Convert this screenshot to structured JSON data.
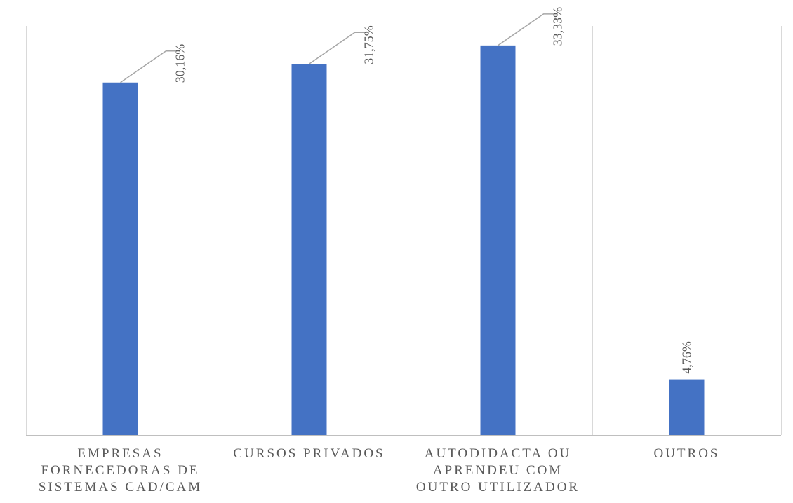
{
  "chart_data": {
    "type": "bar",
    "categories": [
      [
        "EMPRESAS",
        "FORNECEDORAS DE",
        "SISTEMAS CAD/CAM"
      ],
      [
        "CURSOS PRIVADOS"
      ],
      [
        "AUTODIDACTA OU",
        "APRENDEU COM",
        "OUTRO UTILIZADOR"
      ],
      [
        "OUTROS"
      ]
    ],
    "values": [
      30.16,
      31.75,
      33.33,
      4.76
    ],
    "data_labels": [
      "30,16%",
      "31,75%",
      "33,33%",
      "4,76%"
    ],
    "title": "",
    "xlabel": "",
    "ylabel": "",
    "ylim": [
      0,
      35
    ],
    "grid": "vertical category separators",
    "legend": "none",
    "colors": {
      "bar": "#4472c4",
      "grid": "#d9d9d9",
      "axis": "#bfbfbf",
      "leader": "#a6a6a6",
      "text": "#595959"
    }
  }
}
